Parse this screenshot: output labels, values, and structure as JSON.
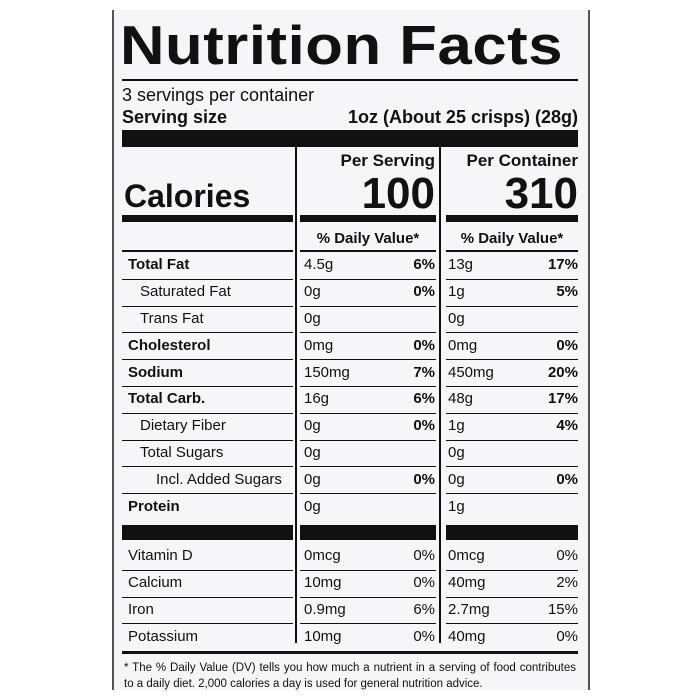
{
  "title": "Nutrition Facts",
  "servings": "3 servings per container",
  "serving_size": {
    "label": "Serving size",
    "value": "1oz (About 25 crisps) (28g)"
  },
  "calories_label": "Calories",
  "columns": [
    {
      "heading": "Per Serving",
      "calories": 100,
      "dv_heading": "% Daily Value*"
    },
    {
      "heading": "Per Container",
      "calories": 310,
      "dv_heading": "% Daily Value*"
    }
  ],
  "nutrients": [
    {
      "name": "Total Fat",
      "amounts": [
        "4.5g",
        "13g"
      ],
      "dv": [
        "6%",
        "17%"
      ],
      "sub": [
        {
          "name": "Saturated Fat",
          "amounts": [
            "0g",
            "1g"
          ],
          "dv": [
            "0%",
            "5%"
          ]
        },
        {
          "name": "Trans Fat",
          "amounts": [
            "0g",
            "0g"
          ],
          "dv": [
            null,
            null
          ]
        }
      ]
    },
    {
      "name": "Cholesterol",
      "amounts": [
        "0mg",
        "0mg"
      ],
      "dv": [
        "0%",
        "0%"
      ]
    },
    {
      "name": "Sodium",
      "amounts": [
        "150mg",
        "450mg"
      ],
      "dv": [
        "7%",
        "20%"
      ]
    },
    {
      "name": "Total Carb.",
      "amounts": [
        "16g",
        "48g"
      ],
      "dv": [
        "6%",
        "17%"
      ],
      "sub": [
        {
          "name": "Dietary Fiber",
          "amounts": [
            "0g",
            "1g"
          ],
          "dv": [
            "0%",
            "4%"
          ]
        },
        {
          "name": "Total Sugars",
          "amounts": [
            "0g",
            "0g"
          ],
          "dv": [
            null,
            null
          ],
          "sub": [
            {
              "name": "Incl. Added Sugars",
              "amounts": [
                "0g",
                "0g"
              ],
              "dv": [
                "0%",
                "0%"
              ]
            }
          ]
        }
      ]
    },
    {
      "name": "Protein",
      "amounts": [
        "0g",
        "1g"
      ],
      "dv": [
        null,
        null
      ]
    }
  ],
  "vitamins": [
    {
      "name": "Vitamin D",
      "amounts": [
        "0mcg",
        "0mcg"
      ],
      "dv": [
        "0%",
        "0%"
      ]
    },
    {
      "name": "Calcium",
      "amounts": [
        "10mg",
        "40mg"
      ],
      "dv": [
        "0%",
        "2%"
      ]
    },
    {
      "name": "Iron",
      "amounts": [
        "0.9mg",
        "2.7mg"
      ],
      "dv": [
        "6%",
        "15%"
      ]
    },
    {
      "name": "Potassium",
      "amounts": [
        "10mg",
        "40mg"
      ],
      "dv": [
        "0%",
        "0%"
      ]
    }
  ],
  "footnote": "* The % Daily Value (DV) tells you how much a nutrient in a serving of food contributes to a daily diet. 2,000 calories a day is used for general nutrition advice."
}
